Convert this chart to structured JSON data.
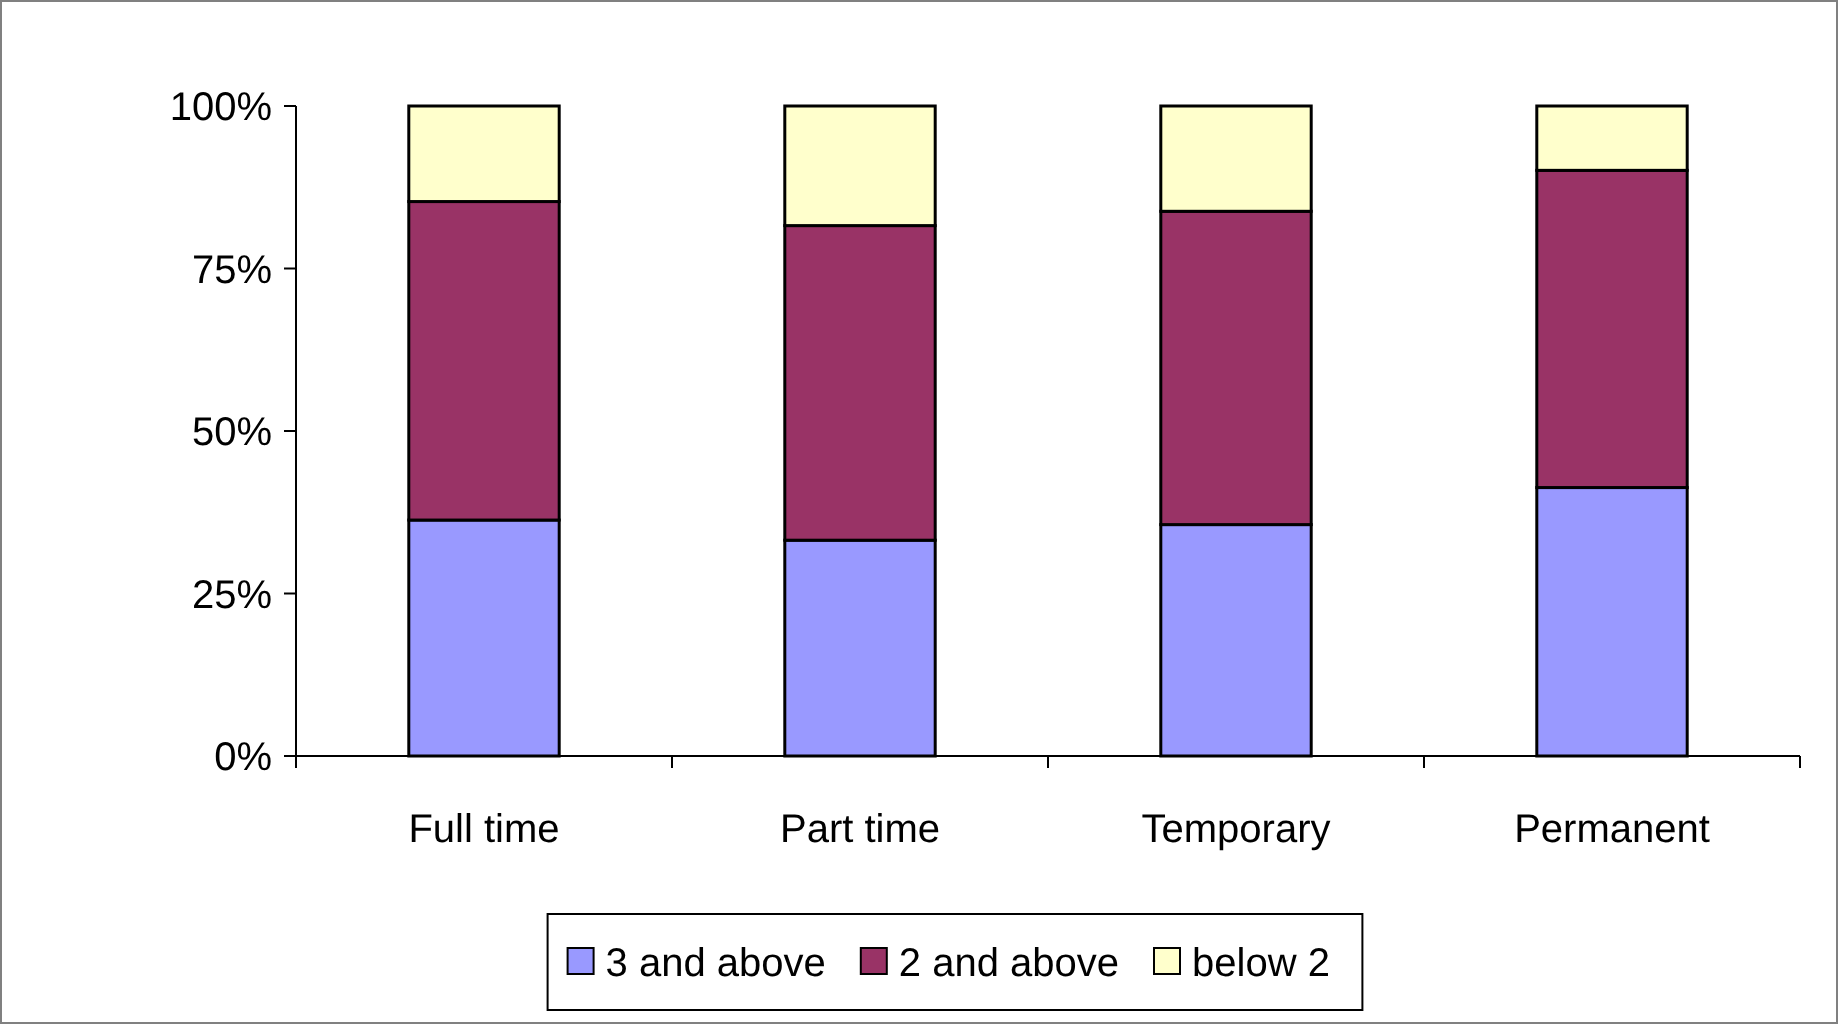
{
  "chart_data": {
    "type": "bar",
    "stacked": true,
    "categories": [
      "Full time",
      "Part time",
      "Temporary",
      "Permanent"
    ],
    "series": [
      {
        "name": "3 and above",
        "color": "#9999ff",
        "values": [
          36.3,
          33.2,
          35.6,
          41.3
        ]
      },
      {
        "name": "2 and above",
        "color": "#993366",
        "values": [
          49.0,
          48.4,
          48.2,
          48.8
        ]
      },
      {
        "name": "below 2",
        "color": "#ffffcc",
        "values": [
          14.7,
          18.4,
          16.2,
          9.9
        ]
      }
    ],
    "ylim": [
      0,
      100
    ],
    "yticks": [
      {
        "value": 0,
        "label": "0%"
      },
      {
        "value": 25,
        "label": "25%"
      },
      {
        "value": 50,
        "label": "50%"
      },
      {
        "value": 75,
        "label": "75%"
      },
      {
        "value": 100,
        "label": "100%"
      }
    ],
    "grid": false,
    "legend": "bottom"
  }
}
